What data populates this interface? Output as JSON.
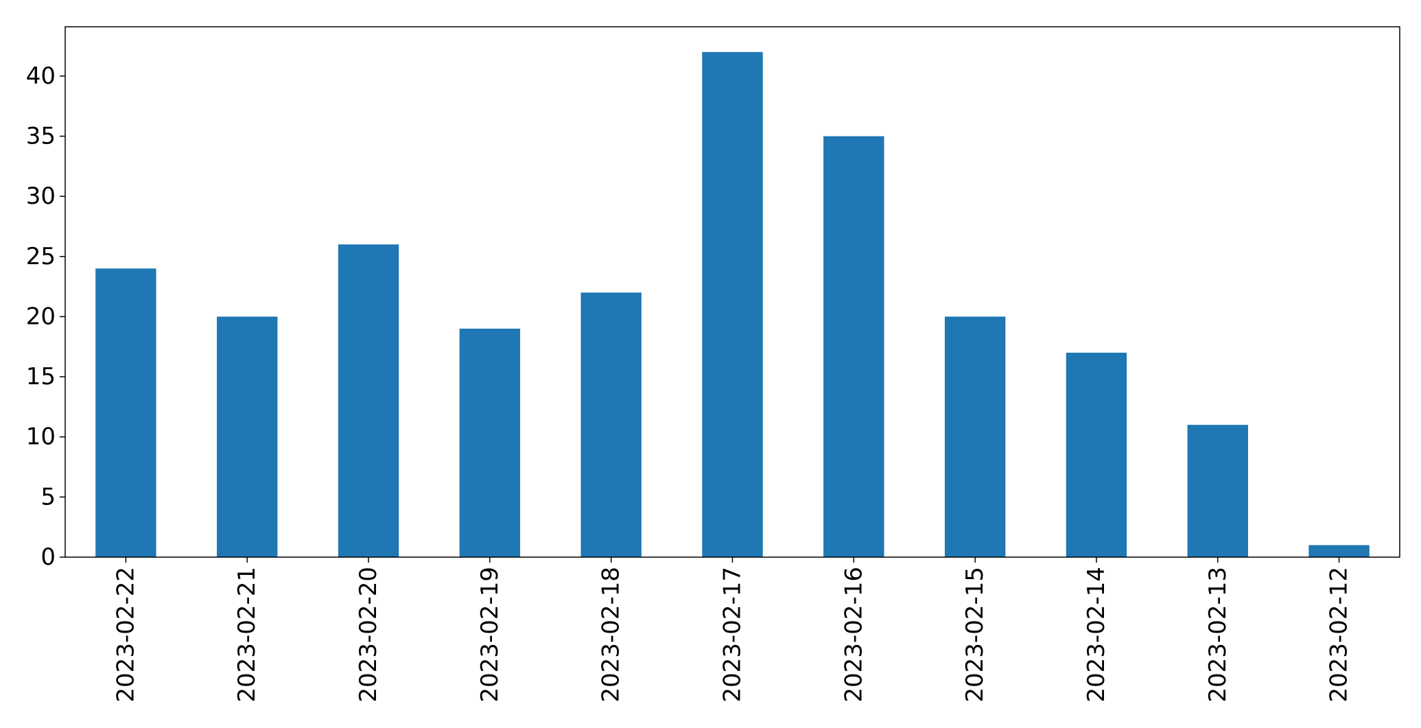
{
  "chart_data": {
    "type": "bar",
    "title": "",
    "xlabel": "",
    "ylabel": "",
    "categories": [
      "2023-02-22",
      "2023-02-21",
      "2023-02-20",
      "2023-02-19",
      "2023-02-18",
      "2023-02-17",
      "2023-02-16",
      "2023-02-15",
      "2023-02-14",
      "2023-02-13",
      "2023-02-12"
    ],
    "values": [
      24,
      20,
      26,
      19,
      22,
      42,
      35,
      20,
      17,
      11,
      1
    ],
    "ylim": [
      0,
      44.1
    ],
    "yticks": [
      0,
      5,
      10,
      15,
      20,
      25,
      30,
      35,
      40
    ],
    "grid": false,
    "legend": "none",
    "bar_color": "#1f77b4"
  }
}
